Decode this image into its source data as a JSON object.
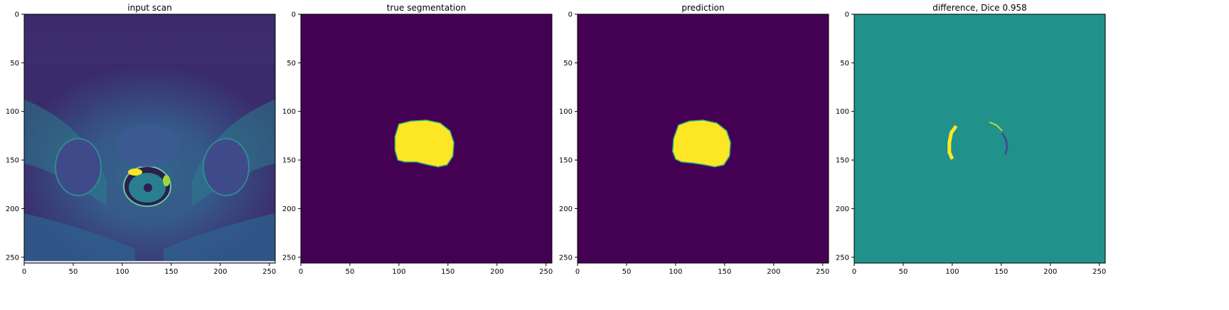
{
  "colors": {
    "background": "#ffffff",
    "viridis_low": "#440154",
    "viridis_mid": "#21918c",
    "viridis_high": "#fde725",
    "viridis_blue": "#3b528b",
    "viridis_teal": "#31688e",
    "viridis_green": "#35b779",
    "scan_dark": "#3a2a6a",
    "scan_bright": "#2f6f8e"
  },
  "chart_data": [
    {
      "type": "heatmap",
      "title": "input scan",
      "xlim": [
        0,
        256
      ],
      "ylim": [
        256,
        0
      ],
      "xticks": [
        0,
        50,
        100,
        150,
        200,
        250
      ],
      "yticks": [
        0,
        50,
        100,
        150,
        200,
        250
      ],
      "colormap": "viridis",
      "content": "MRI scan"
    },
    {
      "type": "heatmap",
      "title": "true segmentation",
      "xlim": [
        0,
        256
      ],
      "ylim": [
        256,
        0
      ],
      "xticks": [
        0,
        50,
        100,
        150,
        200,
        250
      ],
      "yticks": [
        0,
        50,
        100,
        150,
        200,
        250
      ],
      "colormap": "viridis",
      "region_outline": [
        [
          100,
          113
        ],
        [
          112,
          110
        ],
        [
          128,
          109
        ],
        [
          142,
          112
        ],
        [
          152,
          120
        ],
        [
          156,
          132
        ],
        [
          155,
          146
        ],
        [
          149,
          155
        ],
        [
          140,
          157
        ],
        [
          130,
          155
        ],
        [
          118,
          152
        ],
        [
          106,
          152
        ],
        [
          99,
          150
        ],
        [
          96,
          140
        ],
        [
          96,
          126
        ]
      ]
    },
    {
      "type": "heatmap",
      "title": "prediction",
      "xlim": [
        0,
        256
      ],
      "ylim": [
        256,
        0
      ],
      "xticks": [
        0,
        50,
        100,
        150,
        200,
        250
      ],
      "yticks": [
        0,
        50,
        100,
        150,
        200,
        250
      ],
      "colormap": "viridis",
      "region_outline": [
        [
          103,
          114
        ],
        [
          114,
          110
        ],
        [
          128,
          109
        ],
        [
          142,
          112
        ],
        [
          152,
          120
        ],
        [
          156,
          132
        ],
        [
          155,
          146
        ],
        [
          149,
          155
        ],
        [
          140,
          157
        ],
        [
          130,
          155
        ],
        [
          118,
          153
        ],
        [
          106,
          152
        ],
        [
          100,
          149
        ],
        [
          97,
          141
        ],
        [
          98,
          128
        ]
      ]
    },
    {
      "type": "heatmap",
      "title": "difference, Dice 0.958",
      "xlim": [
        0,
        256
      ],
      "ylim": [
        256,
        0
      ],
      "xticks": [
        0,
        50,
        100,
        150,
        200,
        250
      ],
      "yticks": [
        0,
        50,
        100,
        150,
        200,
        250
      ],
      "colormap": "viridis",
      "dice": 0.958
    }
  ]
}
